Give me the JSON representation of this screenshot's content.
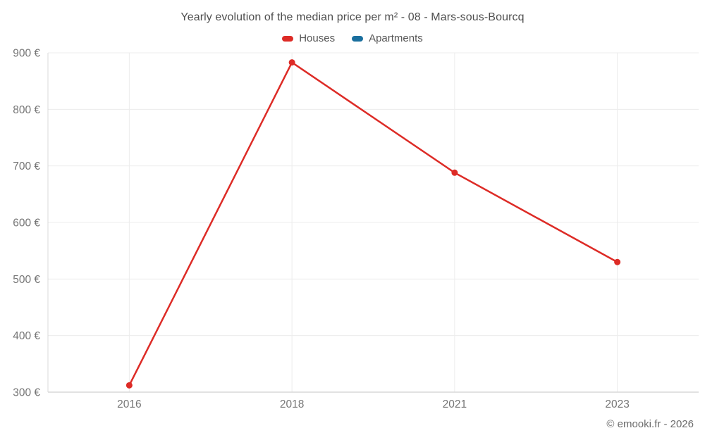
{
  "header": {
    "title": "Yearly evolution of the median price per m² - 08 - Mars-sous-Bourcq"
  },
  "legend": [
    {
      "label": "Houses",
      "color": "#dd2b26"
    },
    {
      "label": "Apartments",
      "color": "#1a6f9e"
    }
  ],
  "chart_data": {
    "type": "line",
    "title": "Yearly evolution of the median price per m² - 08 - Mars-sous-Bourcq",
    "categories": [
      "2016",
      "2018",
      "2021",
      "2023"
    ],
    "series": [
      {
        "name": "Houses",
        "color": "#dd2b26",
        "values": [
          312,
          883,
          688,
          530
        ]
      },
      {
        "name": "Apartments",
        "color": "#1a6f9e",
        "values": []
      }
    ],
    "xlabel": "",
    "ylabel": "",
    "ylim": [
      300,
      900
    ],
    "ytick_step": 100,
    "ytick_suffix": " €",
    "grid": true,
    "legend_position": "top",
    "colors": {
      "grid_line": "#ececec",
      "axis_line": "#d8d8d8",
      "tick_label": "#757575",
      "background": "#ffffff"
    }
  },
  "footer": {
    "copyright": "© emooki.fr - 2026"
  }
}
